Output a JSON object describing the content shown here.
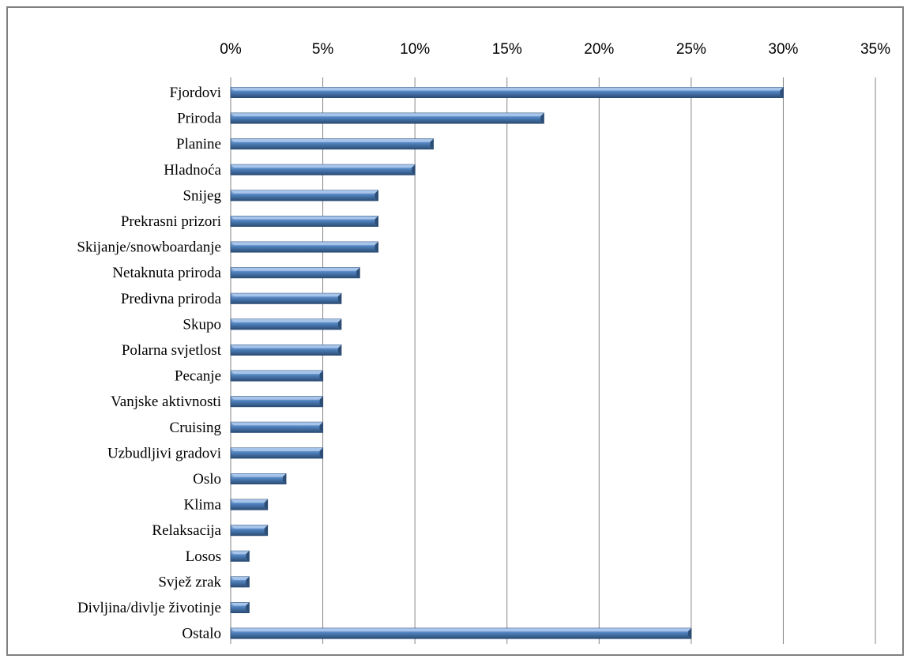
{
  "chart_data": {
    "type": "bar",
    "orientation": "horizontal",
    "categories": [
      "Fjordovi",
      "Priroda",
      "Planine",
      "Hladnoća",
      "Snijeg",
      "Prekrasni prizori",
      "Skijanje/snowboardanje",
      "Netaknuta priroda",
      "Predivna priroda",
      "Skupo",
      "Polarna svjetlost",
      "Pecanje",
      "Vanjske aktivnosti",
      "Cruising",
      "Uzbudljivi gradovi",
      "Oslo",
      "Klima",
      "Relaksacija",
      "Losos",
      "Svjež zrak",
      "Divljina/divlje životinje",
      "Ostalo"
    ],
    "values": [
      30,
      17,
      11,
      10,
      8,
      8,
      8,
      7,
      6,
      6,
      6,
      5,
      5,
      5,
      5,
      3,
      2,
      2,
      1,
      1,
      1,
      25
    ],
    "xlim": [
      0,
      35
    ],
    "xticks": [
      "0%",
      "5%",
      "10%",
      "15%",
      "20%",
      "25%",
      "30%",
      "35%"
    ],
    "x_axis_position": "top",
    "grid": true,
    "legend": "none",
    "title": "",
    "xlabel": "",
    "ylabel": "",
    "colors": {
      "bar_fill": "#4f81bd",
      "bar_highlight": "#a7c4ea",
      "bar_shadow": "#2c4d75",
      "gridline": "#868686"
    }
  }
}
